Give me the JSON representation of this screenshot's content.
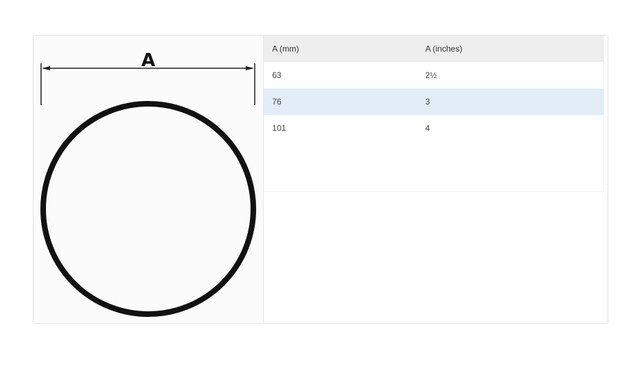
{
  "diagram": {
    "label": "A"
  },
  "table": {
    "headers": [
      "A (mm)",
      "A (inches)"
    ],
    "rows": [
      [
        "63",
        "2½"
      ],
      [
        "76",
        "3"
      ],
      [
        "101",
        "4"
      ]
    ],
    "highlight_color": "#e2edf8"
  }
}
